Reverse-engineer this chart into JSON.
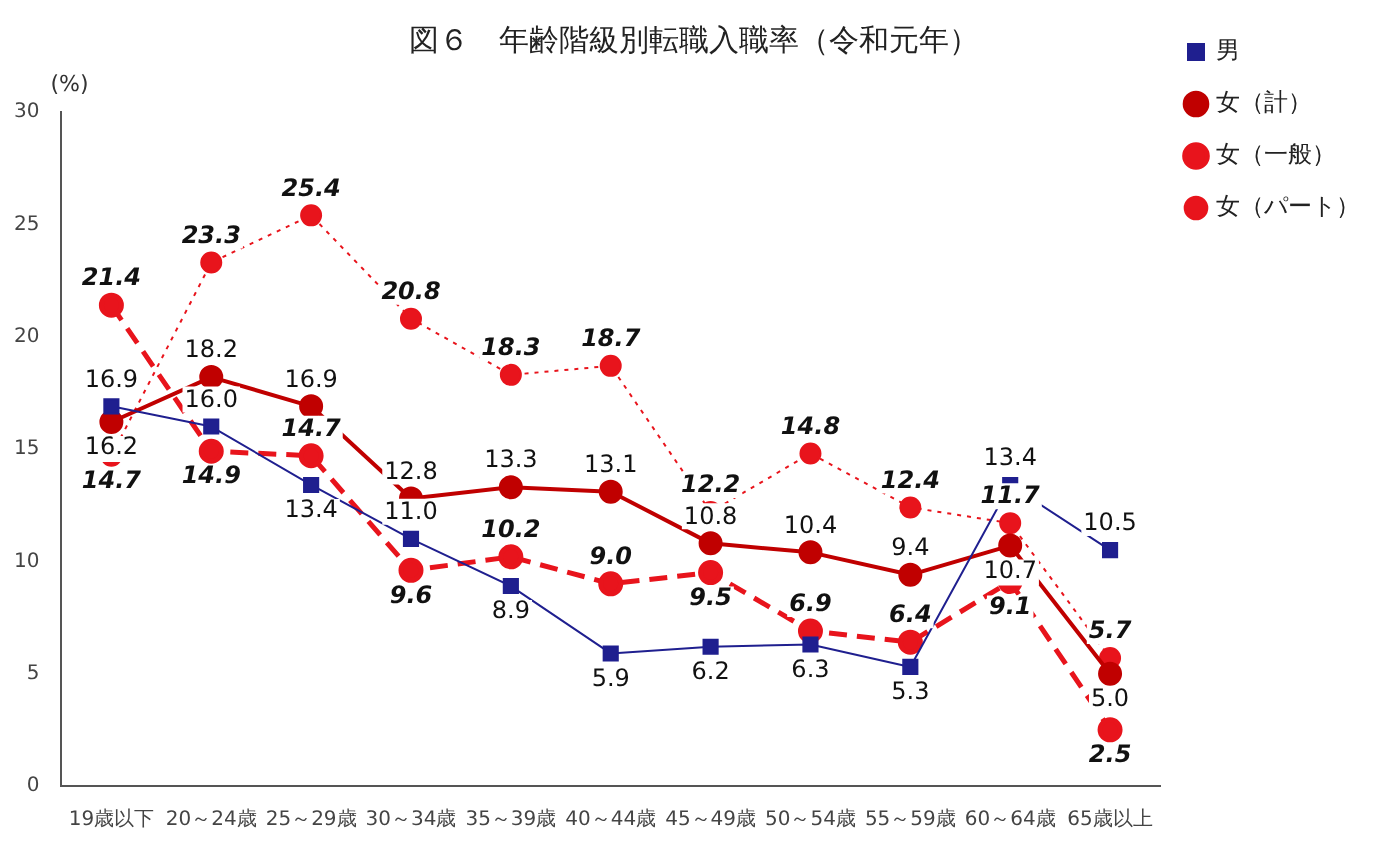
{
  "chart_data": {
    "type": "line",
    "title": "図６　年齢階級別転職入職率（令和元年）",
    "ylabel": "(%)",
    "categories": [
      "19歳以下",
      "20～24歳",
      "25～29歳",
      "30～34歳",
      "35～39歳",
      "40～44歳",
      "45～49歳",
      "50～54歳",
      "55～59歳",
      "60～64歳",
      "65歳以上"
    ],
    "series": [
      {
        "name": "男",
        "color": "#1f1f8f",
        "marker": "square",
        "line_style": "solid",
        "values": [
          16.9,
          16.0,
          13.4,
          11.0,
          8.9,
          5.9,
          6.2,
          6.3,
          5.3,
          13.4,
          10.5
        ],
        "value_labels": [
          "16.9",
          "16.0",
          "13.4",
          "11.0",
          "8.9",
          "5.9",
          "6.2",
          "6.3",
          "5.3",
          "13.4",
          "10.5"
        ]
      },
      {
        "name": "女（計）",
        "color": "#c00000",
        "marker": "circle",
        "line_style": "solid",
        "values": [
          16.2,
          18.2,
          16.9,
          12.8,
          13.3,
          13.1,
          10.8,
          10.4,
          9.4,
          10.7,
          5.0
        ],
        "value_labels": [
          "16.2",
          "18.2",
          "16.9",
          "12.8",
          "13.3",
          "13.1",
          "10.8",
          "10.4",
          "9.4",
          "10.7",
          "5.0"
        ]
      },
      {
        "name": "女（一般）",
        "color": "#e8141c",
        "marker": "circle",
        "line_style": "dashed",
        "values": [
          21.4,
          14.9,
          14.7,
          9.6,
          10.2,
          9.0,
          9.5,
          6.9,
          6.4,
          9.1,
          2.5
        ],
        "value_labels": [
          "21.4",
          "14.9",
          "14.7",
          "9.6",
          "10.2",
          "9.0",
          "9.5",
          "6.9",
          "6.4",
          "9.1",
          "2.5"
        ]
      },
      {
        "name": "女（パート）",
        "color": "#e8141c",
        "marker": "circle",
        "line_style": "dotted",
        "values": [
          14.7,
          23.3,
          25.4,
          20.8,
          18.3,
          18.7,
          12.2,
          14.8,
          12.4,
          11.7,
          5.7
        ],
        "value_labels": [
          "14.7",
          "23.3",
          "25.4",
          "20.8",
          "18.3",
          "18.7",
          "12.2",
          "14.8",
          "12.4",
          "11.7",
          "5.7"
        ]
      }
    ],
    "ylim": [
      0,
      30
    ],
    "yticks": [
      0,
      5,
      10,
      15,
      20,
      25,
      30
    ],
    "grid": false,
    "legend": "top right"
  }
}
